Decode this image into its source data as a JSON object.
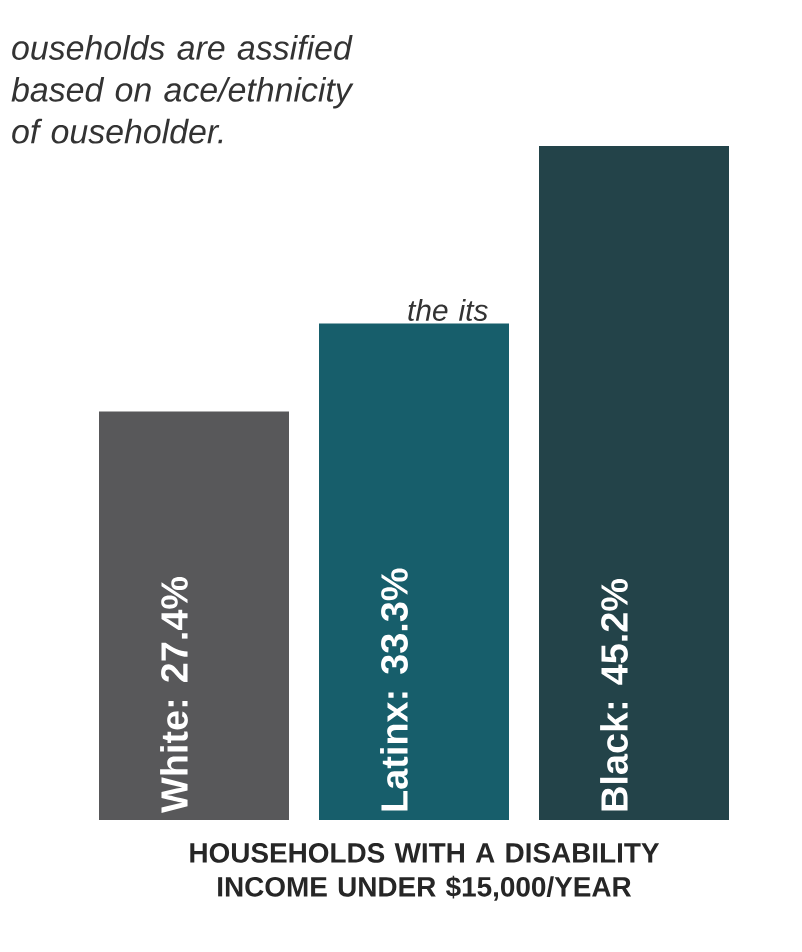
{
  "chart_data": {
    "type": "bar",
    "title": "HOUSEHOLDS WITH A DISABILITY INCOME UNDER $15,000/YEAR",
    "categories": [
      null,
      null,
      null
    ],
    "values": [
      27.4,
      33.3,
      45.2
    ],
    "value_labels": [
      "White: 27.4%",
      "Latinx: 33.3%",
      "Black: 45.2%"
    ],
    "colors": [
      "#58585a",
      "#175e6b",
      "#234349"
    ],
    "annotations": [
      "ouseholds are assified based on ace/ethnicity of ouseholder.",
      "the its"
    ]
  }
}
